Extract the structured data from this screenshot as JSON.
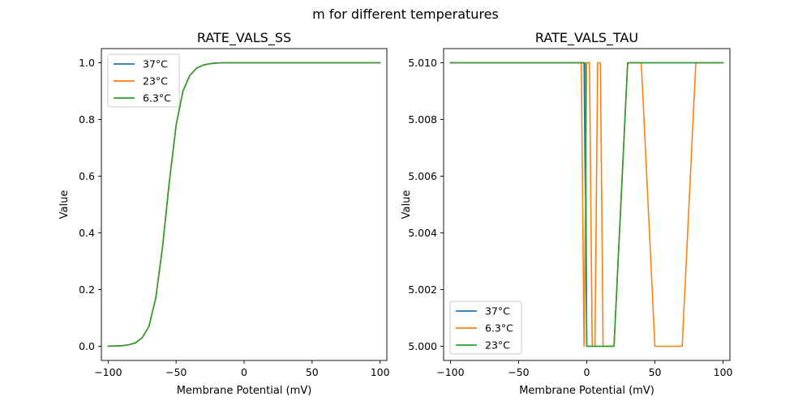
{
  "figure": {
    "suptitle": "m for different temperatures"
  },
  "chart_data": [
    {
      "type": "line",
      "title": "RATE_VALS_SS",
      "xlabel": "Membrane Potential (mV)",
      "ylabel": "Value",
      "xlim": [
        -105,
        105
      ],
      "ylim": [
        -0.05,
        1.05
      ],
      "xticks": [
        -100,
        -50,
        0,
        50,
        100
      ],
      "xtick_labels": [
        "−100",
        "−50",
        "0",
        "50",
        "100"
      ],
      "yticks": [
        0.0,
        0.2,
        0.4,
        0.6,
        0.8,
        1.0
      ],
      "ytick_labels": [
        "0.0",
        "0.2",
        "0.4",
        "0.6",
        "0.8",
        "1.0"
      ],
      "grid": false,
      "legend": "upper-left",
      "series": [
        {
          "name": "37°C",
          "color": "#1f77b4",
          "x": [
            -100,
            -95,
            -90,
            -85,
            -80,
            -75,
            -70,
            -65,
            -60,
            -55,
            -50,
            -45,
            -40,
            -35,
            -30,
            -25,
            -20,
            -15,
            -10,
            -5,
            0,
            5,
            10,
            20,
            40,
            60,
            80,
            100
          ],
          "values": [
            0.0005,
            0.001,
            0.002,
            0.005,
            0.012,
            0.03,
            0.07,
            0.17,
            0.35,
            0.58,
            0.78,
            0.9,
            0.955,
            0.981,
            0.992,
            0.997,
            0.999,
            1.0,
            1.0,
            1.0,
            1.0,
            1.0,
            1.0,
            1.0,
            1.0,
            1.0,
            1.0,
            1.0
          ]
        },
        {
          "name": "23°C",
          "color": "#ff7f0e",
          "x": [
            -100,
            -95,
            -90,
            -85,
            -80,
            -75,
            -70,
            -65,
            -60,
            -55,
            -50,
            -45,
            -40,
            -35,
            -30,
            -25,
            -20,
            -15,
            -10,
            -5,
            0,
            5,
            10,
            20,
            40,
            60,
            80,
            100
          ],
          "values": [
            0.0005,
            0.001,
            0.002,
            0.005,
            0.012,
            0.03,
            0.07,
            0.17,
            0.35,
            0.58,
            0.78,
            0.9,
            0.955,
            0.981,
            0.992,
            0.997,
            0.999,
            1.0,
            1.0,
            1.0,
            1.0,
            1.0,
            1.0,
            1.0,
            1.0,
            1.0,
            1.0,
            1.0
          ]
        },
        {
          "name": "6.3°C",
          "color": "#2ca02c",
          "x": [
            -100,
            -95,
            -90,
            -85,
            -80,
            -75,
            -70,
            -65,
            -60,
            -55,
            -50,
            -45,
            -40,
            -35,
            -30,
            -25,
            -20,
            -15,
            -10,
            -5,
            0,
            5,
            10,
            20,
            40,
            60,
            80,
            100
          ],
          "values": [
            0.0005,
            0.001,
            0.002,
            0.005,
            0.012,
            0.03,
            0.07,
            0.17,
            0.35,
            0.58,
            0.78,
            0.9,
            0.955,
            0.981,
            0.992,
            0.997,
            0.999,
            1.0,
            1.0,
            1.0,
            1.0,
            1.0,
            1.0,
            1.0,
            1.0,
            1.0,
            1.0,
            1.0
          ]
        }
      ]
    },
    {
      "type": "line",
      "title": "RATE_VALS_TAU",
      "xlabel": "Membrane Potential (mV)",
      "ylabel": "Value",
      "xlim": [
        -105,
        105
      ],
      "ylim": [
        4.9995,
        5.0105
      ],
      "xticks": [
        -100,
        -50,
        0,
        50,
        100
      ],
      "xtick_labels": [
        "−100",
        "−50",
        "0",
        "50",
        "100"
      ],
      "yticks": [
        5.0,
        5.002,
        5.004,
        5.006,
        5.008,
        5.01
      ],
      "ytick_labels": [
        "5.000",
        "5.002",
        "5.004",
        "5.006",
        "5.008",
        "5.010"
      ],
      "grid": false,
      "legend": "lower-left",
      "series": [
        {
          "name": "37°C",
          "color": "#1f77b4",
          "x": [
            -100,
            -2,
            0,
            20,
            30,
            100
          ],
          "values": [
            5.01,
            5.01,
            5.0,
            5.0,
            5.01,
            5.01
          ]
        },
        {
          "name": "6.3°C",
          "color": "#ff7f0e",
          "x": [
            -100,
            -4,
            -2,
            0,
            2,
            4,
            6,
            8,
            10,
            12,
            14,
            20,
            30,
            40,
            50,
            60,
            70,
            80,
            100
          ],
          "values": [
            5.01,
            5.01,
            5.0,
            5.01,
            5.01,
            5.0,
            5.0,
            5.01,
            5.01,
            5.0,
            5.0,
            5.0,
            5.01,
            5.01,
            5.0,
            5.0,
            5.0,
            5.01,
            5.01
          ]
        },
        {
          "name": "23°C",
          "color": "#2ca02c",
          "x": [
            -100,
            -1,
            0,
            20,
            30,
            100
          ],
          "values": [
            5.01,
            5.01,
            5.0,
            5.0,
            5.01,
            5.01
          ]
        }
      ]
    }
  ]
}
